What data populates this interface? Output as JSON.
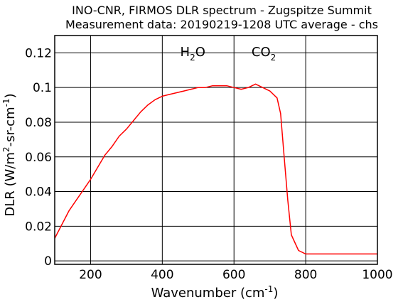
{
  "chart_data": {
    "type": "line",
    "title_line1": "INO-CNR, FIRMOS DLR spectrum - Zugspitze Summit",
    "title_line2": "Measurement data: 20190219-1208 UTC average - chs",
    "xlabel": {
      "text": "Wavenumber (cm",
      "sup": "-1",
      "close": ")"
    },
    "ylabel": {
      "part1": "DLR (W/m",
      "sup1": "2",
      "part2": "-sr-cm",
      "sup2": "-1",
      "close": ")"
    },
    "xlim": [
      100,
      1000
    ],
    "ylim": [
      -0.002,
      0.13
    ],
    "x_ticks": [
      200,
      400,
      600,
      800,
      1000
    ],
    "x_tick_labels": [
      "200",
      "400",
      "600",
      "800",
      "1000"
    ],
    "y_ticks": [
      0,
      0.02,
      0.04,
      0.06,
      0.08,
      0.1,
      0.12
    ],
    "y_tick_labels": [
      "0",
      "0.02",
      "0.04",
      "0.06",
      "0.08",
      "0.1",
      "0.12"
    ],
    "grid": true,
    "annotations": [
      {
        "label": "H",
        "sub": "2",
        "tail": "O",
        "x": 485
      },
      {
        "label": "CO",
        "sub": "2",
        "tail": "",
        "x": 683
      }
    ],
    "series": [
      {
        "color": "#ff0000",
        "x": [
          100,
          120,
          140,
          160,
          180,
          200,
          220,
          240,
          260,
          280,
          300,
          320,
          340,
          360,
          380,
          400,
          420,
          440,
          460,
          480,
          500,
          520,
          540,
          560,
          580,
          600,
          620,
          640,
          660,
          680,
          700,
          720,
          730,
          740,
          750,
          760,
          780,
          800,
          820,
          840,
          860,
          880,
          900,
          920,
          940,
          960,
          980,
          1000
        ],
        "y": [
          0.013,
          0.021,
          0.029,
          0.035,
          0.041,
          0.047,
          0.054,
          0.061,
          0.066,
          0.072,
          0.076,
          0.081,
          0.086,
          0.09,
          0.093,
          0.095,
          0.096,
          0.097,
          0.098,
          0.099,
          0.1,
          0.1,
          0.101,
          0.101,
          0.101,
          0.1,
          0.099,
          0.1,
          0.102,
          0.1,
          0.098,
          0.094,
          0.085,
          0.06,
          0.035,
          0.015,
          0.006,
          0.004,
          0.004,
          0.004,
          0.004,
          0.004,
          0.004,
          0.004,
          0.004,
          0.004,
          0.004,
          0.004
        ]
      }
    ]
  }
}
